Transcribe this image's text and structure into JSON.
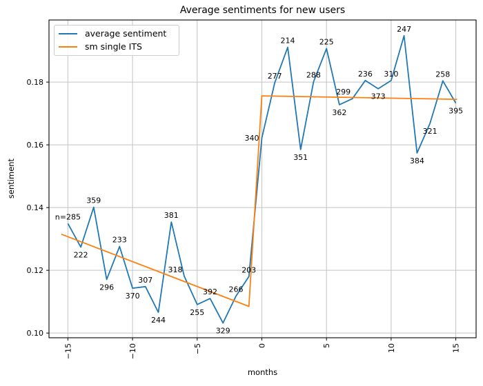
{
  "chart_data": {
    "type": "line",
    "title": "Average sentiments for new users",
    "xlabel": "months",
    "ylabel": "sentiment",
    "xlim": [
      -16.46,
      16.57
    ],
    "ylim": [
      0.0985,
      0.1998
    ],
    "xticks": [
      -15,
      -10,
      -5,
      0,
      5,
      10,
      15
    ],
    "xtick_labels": [
      "−15",
      "−10",
      "−5",
      "0",
      "5",
      "10",
      "15"
    ],
    "yticks": [
      0.1,
      0.12,
      0.14,
      0.16,
      0.18
    ],
    "ytick_labels": [
      "0.10",
      "0.12",
      "0.14",
      "0.16",
      "0.18"
    ],
    "grid": true,
    "legend_position": "upper left",
    "colors": {
      "average_sentiment": "#1f77b4",
      "sm_single_its": "#ff7f0e",
      "grid": "#c3c3c3"
    },
    "series": [
      {
        "name": "average sentiment",
        "color": "#1f77b4",
        "x": [
          -15,
          -14,
          -13,
          -12,
          -11,
          -10,
          -9,
          -8,
          -7,
          -6,
          -5,
          -4,
          -3,
          -2,
          -1,
          0,
          1,
          2,
          3,
          4,
          5,
          6,
          7,
          8,
          9,
          10,
          11,
          12,
          13,
          14,
          15
        ],
        "y": [
          0.1349,
          0.1274,
          0.1401,
          0.1171,
          0.1276,
          0.1143,
          0.1148,
          0.1066,
          0.1354,
          0.1181,
          0.1091,
          0.111,
          0.1032,
          0.1118,
          0.118,
          0.1622,
          0.1798,
          0.1911,
          0.1585,
          0.1801,
          0.1907,
          0.1728,
          0.1747,
          0.1805,
          0.1779,
          0.1805,
          0.1948,
          0.1574,
          0.1668,
          0.1804,
          0.1733
        ],
        "point_labels": [
          "n=285",
          "222",
          "359",
          "296",
          "233",
          "370",
          "307",
          "244",
          "381",
          "318",
          "255",
          "392",
          "329",
          "266",
          "203",
          "340",
          "277",
          "214",
          "351",
          "288",
          "225",
          "362",
          "299",
          "236",
          "373",
          "310",
          "247",
          "384",
          "321",
          "258",
          "395"
        ],
        "label_sides": [
          "above",
          "below",
          "above",
          "below",
          "above",
          "below",
          "above",
          "below",
          "above",
          "above-left",
          "below",
          "above",
          "below",
          "above",
          "above",
          "left",
          "above",
          "above",
          "below",
          "above",
          "above",
          "below",
          "above-left",
          "above",
          "below",
          "above",
          "above",
          "below",
          "below",
          "above",
          "below"
        ]
      },
      {
        "name": "sm single ITS",
        "color": "#ff7f0e",
        "x": [
          -15.5,
          -1,
          0,
          15.1
        ],
        "y": [
          0.1315,
          0.1085,
          0.1756,
          0.1745
        ]
      }
    ]
  }
}
